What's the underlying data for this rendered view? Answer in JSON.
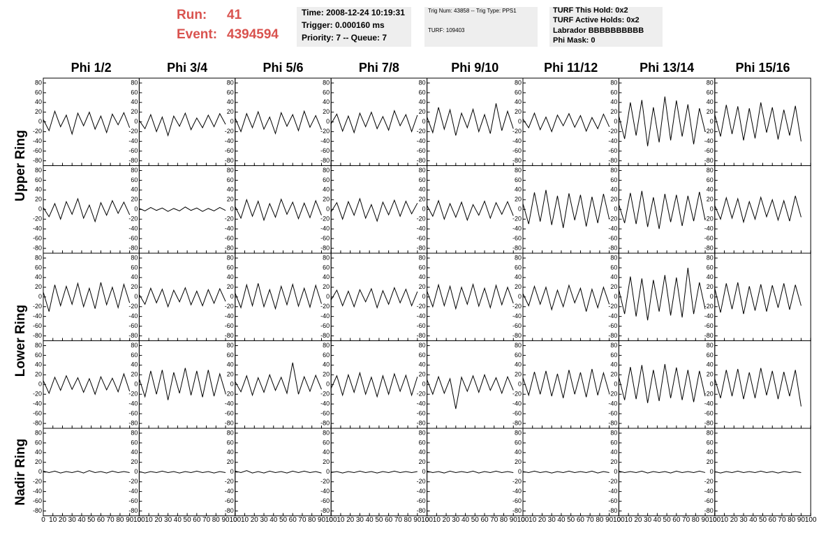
{
  "header": {
    "run_label": "Run:",
    "run": "41",
    "event_label": "Event:",
    "event": "4394594",
    "box1": [
      "Time: 2008-12-24 10:19:31",
      "Trigger: 0.000160 ms",
      "Priority: 7 -- Queue: 7"
    ],
    "box2": [
      "Trig Num: 43858 -- Trig Type: PPS1",
      "TURF: 109403"
    ],
    "box3": [
      "TURF This Hold: 0x2",
      "TURF Active Holds: 0x2",
      "Labrador BBBBBBBBBB",
      "Phi Mask: 0"
    ]
  },
  "chart_data": {
    "type": "waveform-grid",
    "columns": [
      "Phi 1/2",
      "Phi 3/4",
      "Phi 5/6",
      "Phi 7/8",
      "Phi 9/10",
      "Phi 11/12",
      "Phi 13/14",
      "Phi 15/16"
    ],
    "row_groups": [
      {
        "label": "Upper Ring",
        "rows": [
          0,
          1
        ]
      },
      {
        "label": "Lower Ring",
        "rows": [
          2,
          3
        ]
      },
      {
        "label": "Nadir Ring",
        "rows": [
          4
        ]
      }
    ],
    "color": "#000000",
    "xlim": [
      0,
      100
    ],
    "xticks": [
      0,
      10,
      20,
      30,
      40,
      50,
      60,
      70,
      80,
      90,
      100
    ],
    "ylim": [
      -90,
      90
    ],
    "yticks": [
      -80,
      -60,
      -40,
      -20,
      0,
      20,
      40,
      60,
      80
    ],
    "x": [
      0,
      6,
      12,
      18,
      24,
      30,
      36,
      42,
      48,
      54,
      60,
      66,
      72,
      78,
      84,
      90
    ],
    "panels": [
      [
        [
          5,
          -18,
          22,
          -10,
          14,
          -25,
          18,
          -8,
          20,
          -15,
          12,
          -22,
          16,
          -6,
          19,
          -12
        ],
        [
          3,
          -14,
          15,
          -20,
          10,
          -28,
          12,
          -9,
          18,
          -16,
          8,
          -12,
          14,
          -10,
          17,
          -5
        ],
        [
          8,
          -20,
          17,
          -12,
          21,
          -15,
          10,
          -24,
          19,
          -9,
          15,
          -18,
          22,
          -11,
          13,
          -16
        ],
        [
          -4,
          16,
          -19,
          12,
          -22,
          18,
          -10,
          20,
          -14,
          11,
          -17,
          23,
          -8,
          15,
          -20,
          14
        ],
        [
          10,
          -22,
          30,
          -15,
          25,
          -28,
          18,
          -12,
          26,
          -20,
          15,
          -24,
          38,
          -18,
          22,
          -14
        ],
        [
          6,
          -12,
          18,
          -16,
          10,
          -20,
          14,
          -8,
          17,
          -11,
          13,
          -19,
          9,
          -14,
          16,
          -10
        ],
        [
          12,
          -35,
          40,
          -28,
          45,
          -50,
          30,
          -42,
          52,
          -38,
          44,
          -30,
          36,
          -46,
          28,
          -20
        ],
        [
          15,
          -30,
          35,
          -25,
          32,
          -38,
          28,
          -34,
          40,
          -22,
          30,
          -36,
          25,
          -28,
          33,
          -40
        ]
      ],
      [
        [
          4,
          -15,
          12,
          -20,
          16,
          -10,
          22,
          -18,
          9,
          -25,
          14,
          -12,
          18,
          -8,
          15,
          -11
        ],
        [
          2,
          -3,
          4,
          -2,
          3,
          -4,
          2,
          -3,
          5,
          -2,
          3,
          -4,
          2,
          -3,
          4,
          -2
        ],
        [
          6,
          -18,
          20,
          -14,
          17,
          -22,
          12,
          -16,
          21,
          -10,
          15,
          -19,
          13,
          -17,
          18,
          -12
        ],
        [
          -5,
          14,
          -20,
          16,
          -12,
          22,
          -18,
          10,
          -24,
          15,
          -11,
          19,
          -14,
          17,
          -9,
          13
        ],
        [
          8,
          -14,
          18,
          -20,
          12,
          -16,
          15,
          -22,
          10,
          -12,
          17,
          -18,
          14,
          -10,
          16,
          -13
        ],
        [
          12,
          -30,
          35,
          -25,
          40,
          -32,
          28,
          -38,
          33,
          -22,
          30,
          -35,
          26,
          -28,
          32,
          -20
        ],
        [
          10,
          -28,
          34,
          -30,
          38,
          -36,
          25,
          -40,
          32,
          -26,
          30,
          -34,
          28,
          -24,
          36,
          -22
        ],
        [
          8,
          -20,
          24,
          -18,
          22,
          -26,
          16,
          -20,
          25,
          -15,
          20,
          -22,
          18,
          -24,
          28,
          -16
        ]
      ],
      [
        [
          10,
          -30,
          25,
          -18,
          22,
          -15,
          28,
          -20,
          18,
          -24,
          30,
          -16,
          20,
          -22,
          26,
          -12
        ],
        [
          5,
          -15,
          18,
          -12,
          16,
          -20,
          14,
          -10,
          19,
          -16,
          12,
          -18,
          15,
          -13,
          17,
          -9
        ],
        [
          8,
          -22,
          25,
          -18,
          28,
          -20,
          15,
          -24,
          22,
          -16,
          26,
          -19,
          18,
          -21,
          24,
          -14
        ],
        [
          -6,
          14,
          -18,
          12,
          -20,
          15,
          -10,
          17,
          -22,
          13,
          -15,
          19,
          -12,
          16,
          -18,
          11
        ],
        [
          12,
          -20,
          25,
          -18,
          22,
          -24,
          20,
          -15,
          26,
          -19,
          18,
          -22,
          24,
          -16,
          20,
          -13
        ],
        [
          7,
          -18,
          22,
          -15,
          20,
          -26,
          14,
          -20,
          24,
          -12,
          18,
          -30,
          16,
          -22,
          20,
          -15
        ],
        [
          15,
          -35,
          42,
          -40,
          38,
          -48,
          35,
          -30,
          45,
          -38,
          40,
          -42,
          60,
          -35,
          30,
          -25
        ],
        [
          18,
          -32,
          28,
          -25,
          30,
          -35,
          22,
          -28,
          26,
          -30,
          24,
          -22,
          28,
          -26,
          25,
          -18
        ]
      ],
      [
        [
          8,
          -18,
          15,
          -12,
          18,
          -10,
          14,
          -16,
          12,
          -20,
          16,
          -11,
          13,
          -15,
          22,
          -14
        ],
        [
          12,
          -25,
          28,
          -20,
          30,
          -32,
          25,
          -18,
          34,
          -22,
          28,
          -26,
          30,
          -24,
          22,
          -18
        ],
        [
          6,
          -15,
          18,
          -22,
          14,
          -16,
          20,
          -12,
          15,
          -18,
          45,
          -20,
          16,
          -14,
          19,
          -10
        ],
        [
          -8,
          18,
          -22,
          20,
          -16,
          24,
          -20,
          15,
          -25,
          18,
          -20,
          22,
          -14,
          19,
          -22,
          16
        ],
        [
          10,
          -20,
          16,
          -18,
          12,
          -50,
          15,
          -14,
          18,
          -16,
          20,
          -12,
          14,
          -18,
          16,
          -12
        ],
        [
          14,
          -22,
          26,
          -20,
          28,
          -24,
          22,
          -28,
          30,
          -20,
          25,
          -26,
          32,
          -22,
          24,
          -18
        ],
        [
          15,
          -32,
          36,
          -30,
          40,
          -38,
          30,
          -34,
          42,
          -28,
          35,
          -32,
          30,
          -36,
          28,
          -24
        ],
        [
          12,
          -28,
          30,
          -24,
          32,
          -30,
          25,
          -28,
          34,
          -22,
          28,
          -30,
          26,
          -24,
          30,
          -45
        ]
      ],
      [
        [
          2,
          -1,
          2,
          -2,
          1,
          -1,
          2,
          -2,
          3,
          -1,
          1,
          -2,
          2,
          -1,
          1,
          -1
        ],
        [
          1,
          -2,
          1,
          -1,
          2,
          -1,
          1,
          -2,
          1,
          -1,
          2,
          -1,
          1,
          -2,
          1,
          -1
        ],
        [
          2,
          -1,
          3,
          -2,
          1,
          -2,
          2,
          -1,
          1,
          -2,
          2,
          -1,
          2,
          -1,
          1,
          -2
        ],
        [
          -1,
          1,
          -2,
          1,
          -1,
          2,
          -1,
          1,
          -2,
          1,
          -1,
          2,
          -1,
          1,
          -1,
          1
        ],
        [
          2,
          -1,
          1,
          -2,
          2,
          -1,
          1,
          -1,
          2,
          -2,
          1,
          -1,
          2,
          -1,
          1,
          -1
        ],
        [
          1,
          -1,
          2,
          -1,
          1,
          -2,
          1,
          -1,
          2,
          -1,
          1,
          -1,
          2,
          -2,
          1,
          -1
        ],
        [
          2,
          -1,
          1,
          -1,
          2,
          -2,
          1,
          -1,
          1,
          -2,
          2,
          -1,
          1,
          -1,
          2,
          -1
        ],
        [
          1,
          -2,
          1,
          -1,
          2,
          -1,
          1,
          -1,
          2,
          -1,
          1,
          -2,
          1,
          -1,
          1,
          -1
        ]
      ]
    ]
  }
}
